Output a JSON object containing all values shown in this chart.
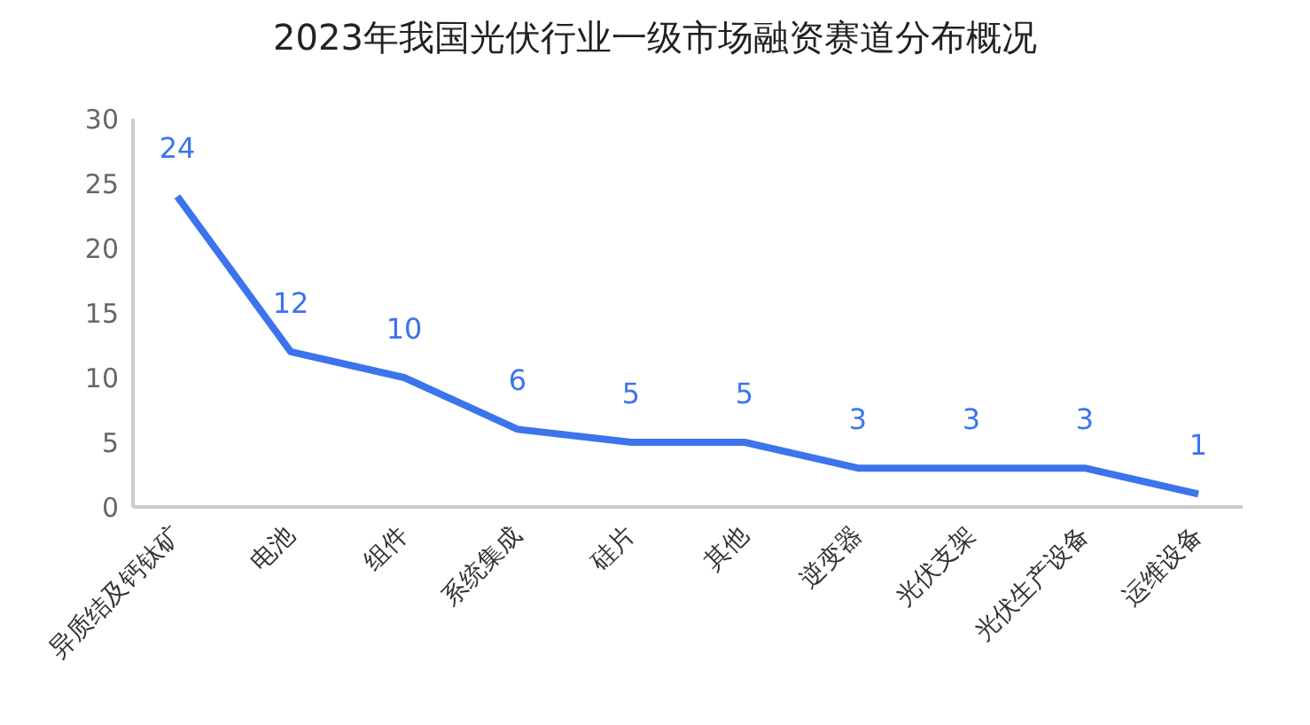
{
  "chart_data": {
    "type": "line",
    "title": "2023年我国光伏行业一级市场融资赛道分布概况",
    "categories": [
      "异质结及钙钛矿",
      "电池",
      "组件",
      "系统集成",
      "硅片",
      "其他",
      "逆变器",
      "光伏支架",
      "光伏生产设备",
      "运维设备"
    ],
    "series": [
      {
        "color": "#3b74ec",
        "values": [
          24,
          12,
          10,
          6,
          5,
          5,
          3,
          3,
          3,
          1
        ]
      }
    ],
    "ylim": [
      0,
      30
    ],
    "yticks": [
      0,
      5,
      10,
      15,
      20,
      25,
      30
    ],
    "grid": false,
    "legend": false,
    "marker": "none",
    "line_style": "solid",
    "data_labels": true
  }
}
